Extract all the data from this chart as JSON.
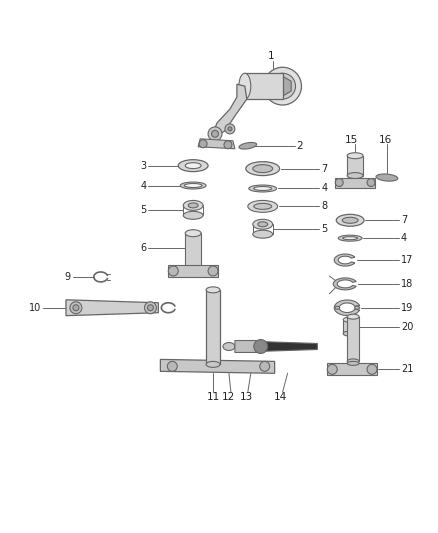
{
  "bg_color": "#ffffff",
  "line_color": "#666666",
  "part_color": "#cccccc",
  "dark_color": "#222222",
  "fig_width": 4.38,
  "fig_height": 5.33,
  "dpi": 100
}
